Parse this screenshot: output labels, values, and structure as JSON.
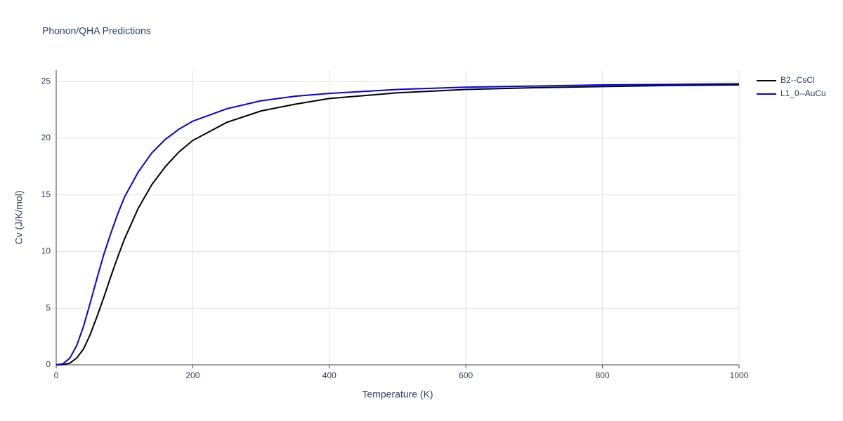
{
  "chart_data": {
    "type": "line",
    "title": "Phonon/QHA Predictions",
    "x_label": "Temperature (K)",
    "y_label": "Cv (J/K/mol)",
    "x": [
      0,
      10,
      20,
      30,
      40,
      50,
      60,
      70,
      80,
      90,
      100,
      120,
      140,
      160,
      180,
      200,
      250,
      300,
      350,
      400,
      500,
      600,
      700,
      800,
      900,
      1000
    ],
    "series": [
      {
        "name": "B2--CsCl",
        "color": "#000000",
        "values": [
          0,
          0.02,
          0.15,
          0.6,
          1.4,
          2.7,
          4.3,
          6.0,
          7.8,
          9.5,
          11.1,
          13.8,
          15.9,
          17.5,
          18.8,
          19.8,
          21.4,
          22.4,
          23.0,
          23.5,
          24.0,
          24.3,
          24.45,
          24.55,
          24.65,
          24.7
        ]
      },
      {
        "name": "L1_0--AuCu",
        "color": "#0000ee",
        "values": [
          0,
          0.1,
          0.6,
          1.7,
          3.4,
          5.5,
          7.7,
          9.8,
          11.6,
          13.3,
          14.8,
          17.0,
          18.7,
          19.9,
          20.8,
          21.5,
          22.6,
          23.3,
          23.7,
          23.95,
          24.3,
          24.5,
          24.6,
          24.7,
          24.75,
          24.8
        ]
      }
    ],
    "xlim": [
      0,
      1000
    ],
    "xticks": [
      0,
      200,
      400,
      600,
      800,
      1000
    ],
    "ylim": [
      0,
      26
    ],
    "yticks": [
      0,
      5,
      10,
      15,
      20,
      25
    ],
    "grid": true,
    "legend": "right"
  }
}
